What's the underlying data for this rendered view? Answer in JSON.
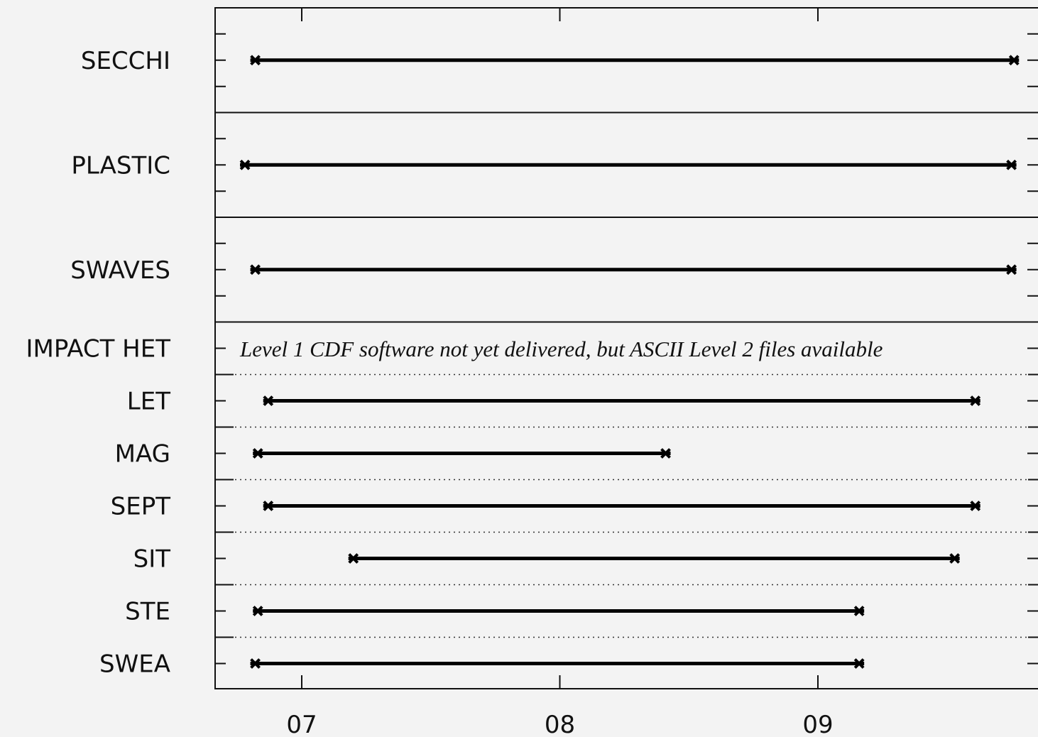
{
  "chart_data": {
    "type": "timeline",
    "x_tick_labels": [
      "07",
      "08",
      "09"
    ],
    "xlim": [
      6.67,
      10.0
    ],
    "grid": false,
    "rows": [
      {
        "label": "SECCHI",
        "start": 6.82,
        "end": 9.76
      },
      {
        "label": "PLASTIC",
        "start": 6.78,
        "end": 9.75
      },
      {
        "label": "SWAVES",
        "start": 6.82,
        "end": 9.75
      },
      {
        "label": "IMPACT HET",
        "start": null,
        "end": null
      },
      {
        "label": "LET",
        "start": 6.87,
        "end": 9.61
      },
      {
        "label": "MAG",
        "start": 6.83,
        "end": 8.41
      },
      {
        "label": "SEPT",
        "start": 6.87,
        "end": 9.61
      },
      {
        "label": "SIT",
        "start": 7.2,
        "end": 9.53
      },
      {
        "label": "STE",
        "start": 6.83,
        "end": 9.16
      },
      {
        "label": "SWEA",
        "start": 6.82,
        "end": 9.16
      }
    ],
    "annotation": "Level 1 CDF  software not yet delivered, but ASCII Level 2 files available"
  }
}
